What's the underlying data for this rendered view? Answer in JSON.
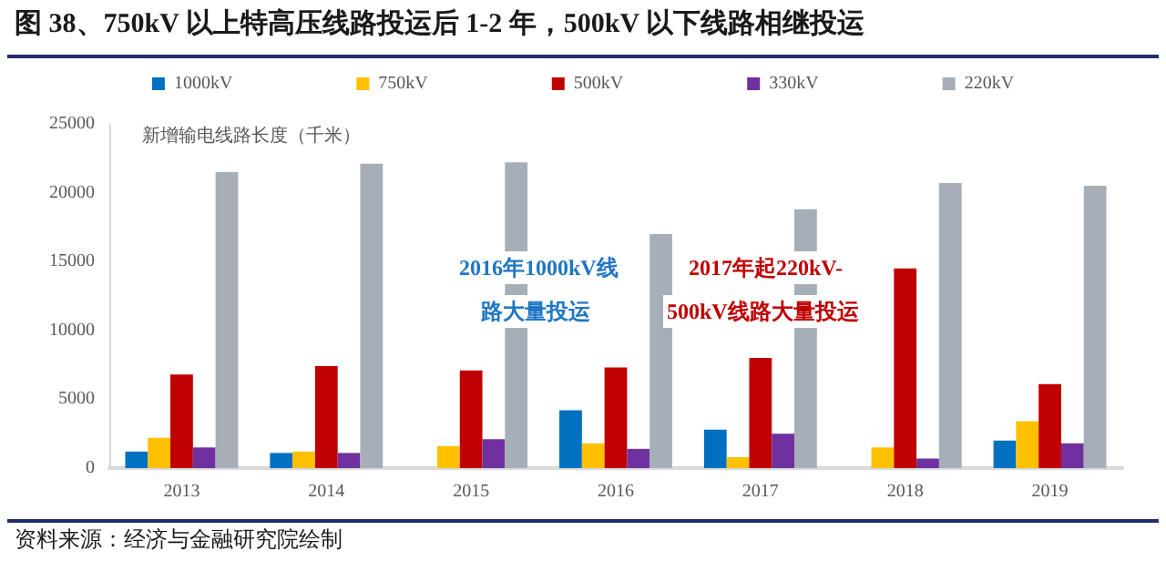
{
  "chart_data": {
    "type": "bar",
    "title": "图 38、750kV 以上特高压线路投运后 1-2 年，500kV 以下线路相继投运",
    "ylabel": "新增输电线路长度（千米）",
    "categories": [
      "2013",
      "2014",
      "2015",
      "2016",
      "2017",
      "2018",
      "2019"
    ],
    "series": [
      {
        "name": "1000kV",
        "color": "#0070c0",
        "values": [
          1200,
          1100,
          null,
          4200,
          2800,
          null,
          2000
        ]
      },
      {
        "name": "750kV",
        "color": "#ffc000",
        "values": [
          2200,
          1200,
          1600,
          1800,
          800,
          1500,
          3400
        ]
      },
      {
        "name": "500kV",
        "color": "#c00000",
        "values": [
          6800,
          7400,
          7100,
          7300,
          8000,
          14500,
          6100
        ]
      },
      {
        "name": "330kV",
        "color": "#7030a0",
        "values": [
          1500,
          1100,
          2100,
          1400,
          2500,
          700,
          1800
        ]
      },
      {
        "name": "220kV",
        "color": "#a6aeb8",
        "values": [
          21500,
          22100,
          22200,
          17000,
          18800,
          20700,
          20500
        ]
      }
    ],
    "ylim": [
      0,
      25000
    ],
    "yticks": [
      0,
      5000,
      10000,
      15000,
      20000,
      25000
    ],
    "grid": false,
    "legend": "top",
    "annotations": [
      "2016年1000kV线",
      "路大量投运",
      "2017年起220kV-",
      "500kV线路大量投运",
      "资料来源：经济与金融研究院绘制"
    ]
  }
}
